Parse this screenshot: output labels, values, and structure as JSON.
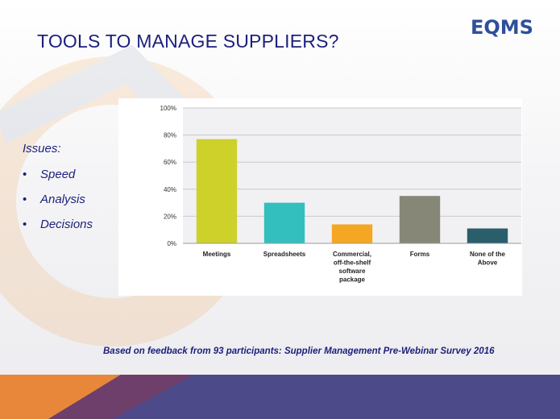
{
  "slide": {
    "title": "TOOLS TO MANAGE SUPPLIERS?",
    "logo_text": "EQMS",
    "issues_heading": "Issues:",
    "issues": [
      "Speed",
      "Analysis",
      "Decisions"
    ],
    "bullet": "•",
    "footnote": "Based on feedback from 93 participants: Supplier Management  Pre-Webinar Survey 2016"
  },
  "colors": {
    "title": "#1c1f7a",
    "logo_blue": "#2f4f9a",
    "logo_orange": "#f39a2d",
    "band_orange": "#e8873a",
    "band_purple": "#4d4a8a"
  },
  "chart_data": {
    "type": "bar",
    "categories": [
      [
        "Meetings"
      ],
      [
        "Spreadsheets"
      ],
      [
        "Commercial,",
        "off-the-shelf",
        "software",
        "package"
      ],
      [
        "Forms"
      ],
      [
        "None of the",
        "Above"
      ]
    ],
    "values": [
      77,
      30,
      14,
      35,
      11
    ],
    "bar_colors": [
      "#cdd12a",
      "#33bfbd",
      "#f5a623",
      "#878778",
      "#2b5e6b"
    ],
    "ylim": [
      0,
      100
    ],
    "yticks": [
      "0%",
      "20%",
      "40%",
      "60%",
      "80%",
      "100%"
    ],
    "grid": true,
    "xlabel": "",
    "ylabel": ""
  }
}
